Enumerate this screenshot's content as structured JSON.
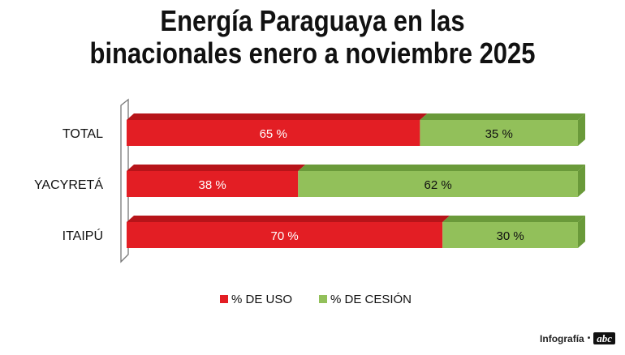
{
  "chart_data": {
    "type": "bar",
    "orientation": "horizontal",
    "stacked": true,
    "title": "Energía Paraguaya en las binacionales enero a noviembre 2025",
    "title_lines": [
      "Energía Paraguaya en las",
      "binacionales enero a noviembre 2025"
    ],
    "categories": [
      "TOTAL",
      "YACYRETÁ",
      "ITAIPÚ"
    ],
    "series": [
      {
        "name": "% DE USO",
        "values": [
          65,
          38,
          70
        ],
        "labels": [
          "65 %",
          "38 %",
          "70 %"
        ],
        "color": "#e31e24",
        "top_color": "#b71419"
      },
      {
        "name": "% DE CESIÓN",
        "values": [
          35,
          62,
          30
        ],
        "labels": [
          "35 %",
          "62  %",
          "30  %"
        ],
        "color": "#92c05a",
        "top_color": "#6a9a3a"
      }
    ],
    "xlim": [
      0,
      100
    ],
    "legend_position": "bottom"
  },
  "credit": {
    "text": "Infografía",
    "separator": "•",
    "logo": "abc"
  }
}
